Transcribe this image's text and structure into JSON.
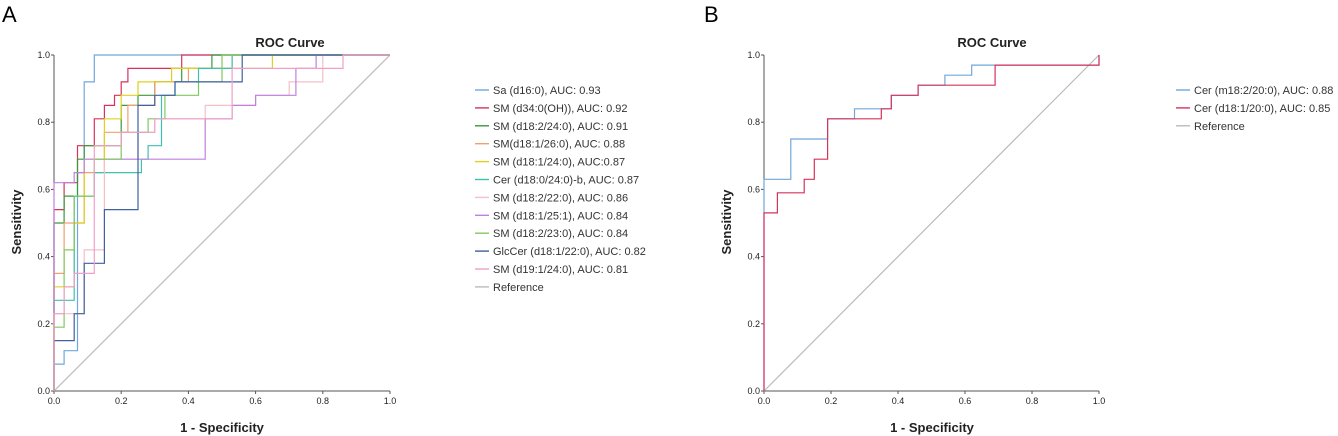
{
  "chart_data": [
    {
      "panel": "A",
      "type": "line",
      "title": "ROC Curve",
      "xlabel": "1 - Specificity",
      "ylabel": "Sensitivity",
      "xlim": [
        0,
        1
      ],
      "ylim": [
        0,
        1
      ],
      "xticks": [
        "0.0",
        "0.2",
        "0.4",
        "0.6",
        "0.8",
        "1.0"
      ],
      "yticks": [
        "0.0",
        "0.2",
        "0.4",
        "0.6",
        "0.8",
        "1.0"
      ],
      "legend_position": "right",
      "series": [
        {
          "name": "Sa (d16:0), AUC: 0.93",
          "color": "#6fa8dc",
          "x": [
            0,
            0,
            0.03,
            0.03,
            0.07,
            0.07,
            0.09,
            0.09,
            0.12,
            0.12,
            1.0
          ],
          "y": [
            0,
            0.08,
            0.08,
            0.12,
            0.12,
            0.65,
            0.65,
            0.92,
            0.92,
            1.0,
            1.0
          ]
        },
        {
          "name": "SM (d34:0(OH)), AUC: 0.92",
          "color": "#d6335b",
          "x": [
            0,
            0,
            0.03,
            0.03,
            0.07,
            0.07,
            0.12,
            0.12,
            0.15,
            0.15,
            0.18,
            0.18,
            0.2,
            0.2,
            0.22,
            0.22,
            0.38,
            0.38,
            0.5,
            0.5,
            1.0
          ],
          "y": [
            0,
            0.54,
            0.54,
            0.62,
            0.62,
            0.73,
            0.73,
            0.81,
            0.81,
            0.85,
            0.85,
            0.88,
            0.88,
            0.92,
            0.92,
            0.96,
            0.96,
            1.0,
            1.0,
            1.0,
            1.0
          ],
          "x_alt": null
        },
        {
          "name": "SM (d18:2/24:0), AUC: 0.91",
          "color": "#3a9a3a",
          "x": [
            0,
            0,
            0.03,
            0.03,
            0.07,
            0.07,
            0.09,
            0.09,
            0.2,
            0.2,
            0.25,
            0.25,
            0.3,
            0.3,
            0.38,
            0.38,
            0.47,
            0.47,
            1.0
          ],
          "y": [
            0,
            0.5,
            0.5,
            0.58,
            0.58,
            0.69,
            0.69,
            0.73,
            0.73,
            0.85,
            0.85,
            0.88,
            0.88,
            0.92,
            0.92,
            0.96,
            0.96,
            1.0,
            1.0
          ]
        },
        {
          "name": "SM(d18:1/26:0), AUC: 0.88",
          "color": "#f0a070",
          "x": [
            0,
            0,
            0.03,
            0.03,
            0.09,
            0.09,
            0.15,
            0.15,
            0.22,
            0.22,
            0.3,
            0.3,
            0.4,
            0.4,
            0.53,
            0.53,
            1.0
          ],
          "y": [
            0,
            0.35,
            0.35,
            0.5,
            0.5,
            0.65,
            0.65,
            0.77,
            0.77,
            0.85,
            0.85,
            0.92,
            0.92,
            0.96,
            0.96,
            1.0,
            1.0
          ]
        },
        {
          "name": "SM (d18:1/24:0), AUC:0.87",
          "color": "#e0d020",
          "x": [
            0,
            0,
            0.06,
            0.06,
            0.09,
            0.09,
            0.15,
            0.15,
            0.2,
            0.2,
            0.25,
            0.25,
            0.35,
            0.35,
            0.56,
            0.56,
            0.65,
            0.65,
            1.0
          ],
          "y": [
            0,
            0.31,
            0.31,
            0.5,
            0.5,
            0.69,
            0.69,
            0.81,
            0.81,
            0.88,
            0.88,
            0.92,
            0.92,
            0.96,
            0.96,
            0.96,
            0.96,
            1.0,
            1.0
          ]
        },
        {
          "name": "Cer (d18:0/24:0)-b, AUC: 0.87",
          "color": "#40c0b0",
          "x": [
            0,
            0,
            0.06,
            0.06,
            0.12,
            0.12,
            0.18,
            0.18,
            0.26,
            0.26,
            0.28,
            0.28,
            0.32,
            0.32,
            0.36,
            0.36,
            0.43,
            0.43,
            0.53,
            0.53,
            1.0
          ],
          "y": [
            0,
            0.27,
            0.27,
            0.58,
            0.58,
            0.65,
            0.65,
            0.65,
            0.65,
            0.69,
            0.69,
            0.73,
            0.73,
            0.88,
            0.88,
            0.92,
            0.92,
            0.96,
            0.96,
            1.0,
            1.0
          ]
        },
        {
          "name": "SM (d18:2/22:0), AUC: 0.86",
          "color": "#f4c0c8",
          "x": [
            0,
            0,
            0.09,
            0.09,
            0.15,
            0.15,
            0.25,
            0.25,
            0.3,
            0.3,
            0.45,
            0.45,
            0.6,
            0.6,
            0.7,
            0.7,
            0.8,
            0.8,
            1.0
          ],
          "y": [
            0,
            0.23,
            0.23,
            0.42,
            0.42,
            0.69,
            0.69,
            0.77,
            0.77,
            0.81,
            0.81,
            0.85,
            0.85,
            0.88,
            0.88,
            0.92,
            0.92,
            1.0,
            1.0
          ]
        },
        {
          "name": "SM (d18:1/25:1), AUC: 0.84",
          "color": "#c080e0",
          "x": [
            0,
            0,
            0.06,
            0.06,
            0.09,
            0.09,
            0.45,
            0.45,
            0.53,
            0.53,
            0.6,
            0.6,
            0.72,
            0.72,
            0.78,
            0.78,
            1.0
          ],
          "y": [
            0,
            0.62,
            0.62,
            0.65,
            0.65,
            0.69,
            0.69,
            0.81,
            0.81,
            0.85,
            0.85,
            0.88,
            0.88,
            0.96,
            0.96,
            1.0,
            1.0
          ]
        },
        {
          "name": "SM (d18:2/23:0), AUC: 0.84",
          "color": "#80c860",
          "x": [
            0,
            0,
            0.03,
            0.03,
            0.06,
            0.06,
            0.12,
            0.12,
            0.2,
            0.2,
            0.28,
            0.28,
            0.33,
            0.33,
            0.43,
            0.43,
            0.5,
            0.5,
            1.0
          ],
          "y": [
            0,
            0.19,
            0.19,
            0.42,
            0.42,
            0.58,
            0.58,
            0.69,
            0.69,
            0.77,
            0.77,
            0.81,
            0.81,
            0.88,
            0.88,
            0.92,
            0.92,
            1.0,
            1.0
          ]
        },
        {
          "name": "GlcCer (d18:1/22:0), AUC: 0.82",
          "color": "#4060a0",
          "x": [
            0,
            0,
            0.06,
            0.06,
            0.09,
            0.09,
            0.15,
            0.15,
            0.25,
            0.25,
            0.3,
            0.3,
            0.36,
            0.36,
            0.56,
            0.56,
            1.0
          ],
          "y": [
            0,
            0.15,
            0.15,
            0.23,
            0.23,
            0.38,
            0.38,
            0.54,
            0.54,
            0.85,
            0.85,
            0.88,
            0.88,
            0.92,
            0.92,
            1.0,
            1.0
          ]
        },
        {
          "name": "SM (d19:1/24:0), AUC: 0.81",
          "color": "#f0a0c8",
          "x": [
            0,
            0,
            0.03,
            0.03,
            0.06,
            0.06,
            0.12,
            0.12,
            0.2,
            0.2,
            0.3,
            0.3,
            0.53,
            0.53,
            0.86,
            0.86,
            1.0
          ],
          "y": [
            0,
            0.23,
            0.23,
            0.31,
            0.31,
            0.35,
            0.35,
            0.73,
            0.73,
            0.77,
            0.77,
            0.81,
            0.81,
            0.96,
            0.96,
            1.0,
            1.0
          ]
        },
        {
          "name": "Reference",
          "color": "#bbbbbb",
          "x": [
            0,
            1
          ],
          "y": [
            0,
            1
          ]
        }
      ]
    },
    {
      "panel": "B",
      "type": "line",
      "title": "ROC Curve",
      "xlabel": "1 - Specificity",
      "ylabel": "Sensitivity",
      "xlim": [
        0,
        1
      ],
      "ylim": [
        0,
        1
      ],
      "xticks": [
        "0.0",
        "0.2",
        "0.4",
        "0.6",
        "0.8",
        "1.0"
      ],
      "yticks": [
        "0.0",
        "0.2",
        "0.4",
        "0.6",
        "0.8",
        "1.0"
      ],
      "legend_position": "right",
      "series": [
        {
          "name": "Cer (m18:2/20:0), AUC: 0.88",
          "color": "#6fa8dc",
          "x": [
            0,
            0,
            0.08,
            0.08,
            0.19,
            0.19,
            0.27,
            0.27,
            0.38,
            0.38,
            0.46,
            0.46,
            0.54,
            0.54,
            0.62,
            0.62,
            0.96,
            0.96,
            1.0,
            1.0
          ],
          "y": [
            0,
            0.63,
            0.63,
            0.75,
            0.75,
            0.81,
            0.81,
            0.84,
            0.84,
            0.88,
            0.88,
            0.91,
            0.91,
            0.94,
            0.94,
            0.97,
            0.97,
            0.97,
            0.97,
            1.0
          ]
        },
        {
          "name": "Cer (d18:1/20:0), AUC: 0.85",
          "color": "#d6335b",
          "x": [
            0,
            0,
            0.04,
            0.04,
            0.12,
            0.12,
            0.15,
            0.15,
            0.19,
            0.19,
            0.35,
            0.35,
            0.38,
            0.38,
            0.42,
            0.42,
            0.46,
            0.46,
            0.69,
            0.69,
            1.0,
            1.0
          ],
          "y": [
            0,
            0.53,
            0.53,
            0.59,
            0.59,
            0.63,
            0.63,
            0.69,
            0.69,
            0.81,
            0.81,
            0.84,
            0.84,
            0.88,
            0.88,
            0.88,
            0.88,
            0.91,
            0.91,
            0.97,
            0.97,
            1.0
          ]
        },
        {
          "name": "Reference",
          "color": "#bbbbbb",
          "x": [
            0,
            1
          ],
          "y": [
            0,
            1
          ]
        }
      ]
    }
  ]
}
